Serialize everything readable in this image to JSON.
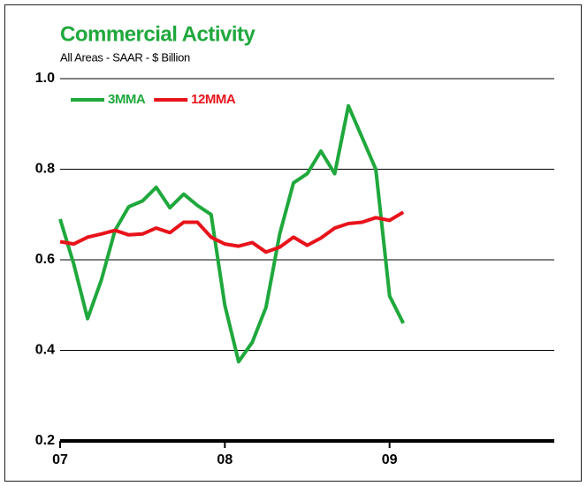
{
  "chart_data": {
    "type": "line",
    "title": "Commercial Activity",
    "subtitle": "All Areas - SAAR - $ Billion",
    "categories": [
      "07",
      null,
      null,
      null,
      null,
      null,
      null,
      null,
      null,
      null,
      null,
      null,
      "08",
      null,
      null,
      null,
      null,
      null,
      null,
      null,
      null,
      null,
      null,
      null,
      "09",
      null,
      null,
      null,
      null,
      null,
      null,
      null,
      null,
      null,
      null,
      null
    ],
    "series": [
      {
        "name": "3MMA",
        "color": "#1fa83c",
        "values": [
          0.69,
          0.59,
          0.47,
          0.555,
          0.665,
          0.717,
          0.73,
          0.76,
          0.715,
          0.745,
          0.72,
          0.7,
          0.5,
          0.375,
          0.418,
          0.495,
          0.657,
          0.77,
          0.79,
          0.84,
          0.79,
          0.94,
          0.87,
          0.8,
          0.52,
          0.46,
          null,
          null,
          null,
          null,
          null,
          null,
          null,
          null,
          null,
          null
        ]
      },
      {
        "name": "12MMA",
        "color": "#e8131b",
        "values": [
          0.64,
          0.635,
          0.65,
          0.657,
          0.665,
          0.655,
          0.657,
          0.67,
          0.66,
          0.683,
          0.683,
          0.65,
          0.635,
          0.63,
          0.638,
          0.617,
          0.628,
          0.65,
          0.632,
          0.648,
          0.67,
          0.68,
          0.683,
          0.693,
          0.687,
          0.705,
          null,
          null,
          null,
          null,
          null,
          null,
          null,
          null,
          null,
          null
        ]
      }
    ],
    "ylim": [
      0.2,
      1.0
    ],
    "yticks": [
      {
        "value": 0.2,
        "label": "0.2"
      },
      0.4,
      0.6,
      0.8,
      {
        "value": 1,
        "label": "1.0"
      }
    ],
    "grid": true,
    "legend": "top-left"
  }
}
